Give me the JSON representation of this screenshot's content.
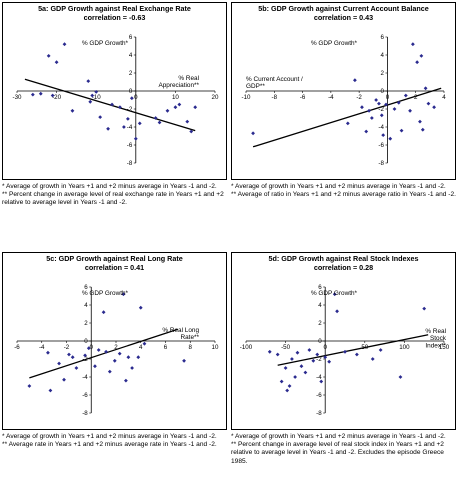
{
  "chart_data": [
    {
      "type": "scatter",
      "title": "5a: GDP Growth against Real Exchange Rate",
      "subtitle": "correlation = -0.63",
      "ylabel": "% GDP Growth*",
      "xlabel": "% Real Appreciation**",
      "xlim": [
        -30,
        20
      ],
      "ylim": [
        -8,
        6
      ],
      "xticks": [
        "-30",
        "-20",
        "-10",
        "0",
        "10",
        "20"
      ],
      "yticks": [
        "6",
        "4",
        "2",
        "0",
        "-2",
        "-4",
        "-6",
        "-8"
      ],
      "points": [
        [
          -18,
          5.2
        ],
        [
          -20,
          3.2
        ],
        [
          -22,
          3.9
        ],
        [
          -26,
          -0.4
        ],
        [
          -24,
          -0.3
        ],
        [
          -21,
          -0.5
        ],
        [
          -16,
          -2.2
        ],
        [
          -12,
          1.1
        ],
        [
          -11,
          -0.5
        ],
        [
          -11.5,
          -1.2
        ],
        [
          -10,
          -0.1
        ],
        [
          -9,
          -2.9
        ],
        [
          -7,
          -4.2
        ],
        [
          -6,
          -1.5
        ],
        [
          -4,
          -1.8
        ],
        [
          -1,
          -0.8
        ],
        [
          -2,
          -3.1
        ],
        [
          -3,
          -4.0
        ],
        [
          0,
          -5.3
        ],
        [
          1,
          -3.6
        ],
        [
          6,
          -3.5
        ],
        [
          8,
          -2.2
        ],
        [
          10,
          -1.8
        ],
        [
          11,
          -1.5
        ],
        [
          13,
          -3.4
        ],
        [
          14,
          -4.5
        ],
        [
          15,
          -1.8
        ],
        [
          5,
          -3.0
        ]
      ],
      "trend": [
        [
          -28,
          1.3
        ],
        [
          15,
          -4.4
        ]
      ],
      "notes": [
        "*  Average of growth in Years +1 and +2 minus average in Years -1 and -2.",
        "** Percent change in average level of real exchange rate in Years +1 and +2 relative to average level in Years -1 and -2."
      ]
    },
    {
      "type": "scatter",
      "title": "5b: GDP Growth against Current Account Balance",
      "subtitle": "correlation = 0.43",
      "ylabel": "% GDP Growth*",
      "xlabel": "% Current Account / GDP**",
      "xlim": [
        -10,
        4
      ],
      "ylim": [
        -8,
        6
      ],
      "xticks": [
        "-10",
        "-8",
        "-6",
        "-4",
        "-2",
        "0",
        "2",
        "4"
      ],
      "yticks": [
        "6",
        "4",
        "2",
        "0",
        "-2",
        "-4",
        "-6",
        "-8"
      ],
      "points": [
        [
          -9.5,
          -4.7
        ],
        [
          -2.8,
          -3.6
        ],
        [
          -2.3,
          1.2
        ],
        [
          -1.8,
          -1.8
        ],
        [
          -1.5,
          -4.5
        ],
        [
          -1.3,
          -2.2
        ],
        [
          -1.1,
          -3.0
        ],
        [
          -0.8,
          -1.0
        ],
        [
          -0.6,
          -1.4
        ],
        [
          -0.4,
          -2.7
        ],
        [
          -0.3,
          -4.9
        ],
        [
          -0.1,
          -1.5
        ],
        [
          0.2,
          -5.3
        ],
        [
          0.5,
          -2.0
        ],
        [
          0.8,
          -1.3
        ],
        [
          1.0,
          -4.4
        ],
        [
          1.3,
          -0.5
        ],
        [
          1.6,
          -2.2
        ],
        [
          1.8,
          5.2
        ],
        [
          2.1,
          3.2
        ],
        [
          2.3,
          -3.4
        ],
        [
          2.5,
          -4.3
        ],
        [
          2.7,
          0.3
        ],
        [
          2.9,
          -1.4
        ],
        [
          3.3,
          -1.8
        ],
        [
          2.4,
          3.9
        ]
      ],
      "trend": [
        [
          -9.5,
          -6.2
        ],
        [
          3.8,
          0.3
        ]
      ],
      "notes": [
        "*  Average of growth in Years +1 and +2 minus average in Years -1 and -2.",
        "** Average of ratio in Years +1 and +2 minus average ratio in Years -1 and -2."
      ]
    },
    {
      "type": "scatter",
      "title": "5c: GDP Growth against Real Long Rate",
      "subtitle": "correlation = 0.41",
      "ylabel": "% GDP Growth*",
      "xlabel": "% Real Long Rate**",
      "xlim": [
        -6,
        10
      ],
      "ylim": [
        -8,
        6
      ],
      "xticks": [
        "-6",
        "-4",
        "-2",
        "0",
        "2",
        "4",
        "6",
        "8",
        "10"
      ],
      "yticks": [
        "6",
        "4",
        "2",
        "0",
        "-2",
        "-4",
        "-6",
        "-8"
      ],
      "points": [
        [
          -5,
          -5.0
        ],
        [
          -3.5,
          -1.3
        ],
        [
          -3.3,
          -5.5
        ],
        [
          -2.6,
          -2.5
        ],
        [
          -2.2,
          -4.3
        ],
        [
          -1.8,
          -1.5
        ],
        [
          -1.5,
          -1.8
        ],
        [
          -1.2,
          -3.0
        ],
        [
          -0.5,
          -1.6
        ],
        [
          -0.2,
          -0.8
        ],
        [
          0.3,
          -2.8
        ],
        [
          0.6,
          -1.0
        ],
        [
          1.0,
          3.2
        ],
        [
          1.2,
          -1.2
        ],
        [
          1.5,
          -3.4
        ],
        [
          1.9,
          -2.2
        ],
        [
          2.3,
          -1.4
        ],
        [
          2.6,
          5.2
        ],
        [
          3.0,
          -1.8
        ],
        [
          3.3,
          -3.0
        ],
        [
          4.0,
          3.7
        ],
        [
          4.3,
          -0.3
        ],
        [
          3.8,
          -1.8
        ],
        [
          7.5,
          -2.2
        ],
        [
          2.8,
          -4.4
        ]
      ],
      "trend": [
        [
          -5,
          -4.1
        ],
        [
          7,
          1.3
        ]
      ],
      "notes": [
        "*  Average of growth in Years +1 and +2 minus average in Years -1 and -2.",
        "** Average rate in Years +1 and +2 minus average rate in Years -1 and -2."
      ]
    },
    {
      "type": "scatter",
      "title": "5d: GDP Growth against Real Stock Indexes",
      "subtitle": "correlation = 0.28",
      "ylabel": "% GDP Growth*",
      "xlabel": "% Real Stock Index**",
      "xlim": [
        -100,
        150
      ],
      "ylim": [
        -8,
        6
      ],
      "xticks": [
        "-100",
        "-50",
        "0",
        "50",
        "100",
        "150"
      ],
      "yticks": [
        "6",
        "4",
        "2",
        "0",
        "-2",
        "-4",
        "-6",
        "-8"
      ],
      "points": [
        [
          -70,
          -1.2
        ],
        [
          -60,
          -1.5
        ],
        [
          -55,
          -4.5
        ],
        [
          -50,
          -3.0
        ],
        [
          -45,
          -5.0
        ],
        [
          -42,
          -2.0
        ],
        [
          -38,
          -4.0
        ],
        [
          -35,
          -1.3
        ],
        [
          -30,
          -2.8
        ],
        [
          -25,
          -3.5
        ],
        [
          -20,
          -1.0
        ],
        [
          -15,
          -2.2
        ],
        [
          -10,
          -1.5
        ],
        [
          -5,
          -4.5
        ],
        [
          0,
          -1.8
        ],
        [
          5,
          -2.3
        ],
        [
          12,
          5.2
        ],
        [
          15,
          3.3
        ],
        [
          25,
          -1.2
        ],
        [
          40,
          -1.5
        ],
        [
          60,
          -2.0
        ],
        [
          70,
          -1.0
        ],
        [
          95,
          -4.0
        ],
        [
          125,
          3.6
        ],
        [
          -48,
          -5.5
        ]
      ],
      "trend": [
        [
          -60,
          -2.7
        ],
        [
          130,
          0.7
        ]
      ],
      "notes": [
        "*  Average of growth in Years +1 and +2 minus average in Years -1 and -2.",
        "** Percent change in average level of real stock index in Years +1 and +2 relative to average level in Years -1 and -2. Excludes the episode Greece 1985."
      ]
    }
  ]
}
